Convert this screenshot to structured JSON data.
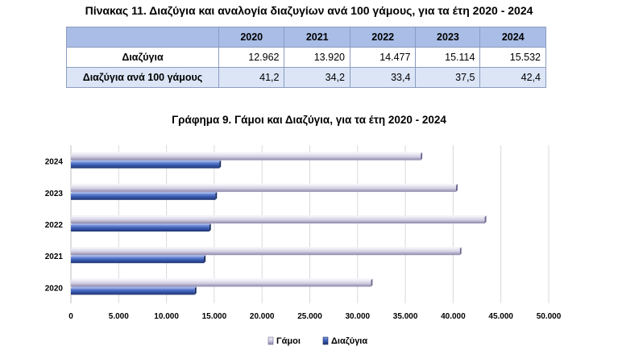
{
  "table": {
    "title": "Πίνακας 11. Διαζύγια και αναλογία διαζυγίων ανά 100 γάμους, για τα έτη 2020 - 2024",
    "years": [
      "2020",
      "2021",
      "2022",
      "2023",
      "2024"
    ],
    "rows": [
      {
        "label": "Διαζύγια",
        "values": [
          "12.962",
          "13.920",
          "14.477",
          "15.114",
          "15.532"
        ]
      },
      {
        "label": "Διαζύγια ανά 100 γάμους",
        "values": [
          "41,2",
          "34,2",
          "33,4",
          "37,5",
          "42,4"
        ]
      }
    ]
  },
  "chart_data": {
    "type": "bar",
    "orientation": "horizontal",
    "title": "Γράφημα 9. Γάμοι και Διαζύγια, για τα έτη 2020 - 2024",
    "categories": [
      "2024",
      "2023",
      "2022",
      "2021",
      "2020"
    ],
    "series": [
      {
        "name": "Γάμοι",
        "values": [
          36600,
          40300,
          43300,
          40700,
          31400
        ],
        "color": "#c9c3dc"
      },
      {
        "name": "Διαζύγια",
        "values": [
          15532,
          15114,
          14477,
          13920,
          12962
        ],
        "color": "#3d5fb8"
      }
    ],
    "x_ticks": [
      "0",
      "5.000",
      "10.000",
      "15.000",
      "20.000",
      "25.000",
      "30.000",
      "35.000",
      "40.000",
      "45.000",
      "50.000"
    ],
    "xlim": [
      0,
      50000
    ],
    "grid": true,
    "legend_position": "bottom"
  }
}
